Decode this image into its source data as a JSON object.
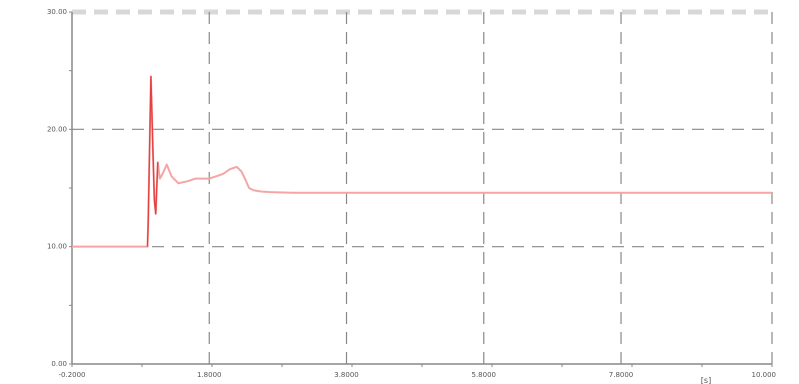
{
  "chart_data": {
    "type": "line",
    "title": "",
    "xlabel": "",
    "ylabel": "",
    "x_unit": "[s]",
    "xlim": [
      -0.2,
      10.0
    ],
    "ylim": [
      0.0,
      30.0
    ],
    "x_ticks": [
      -0.2,
      1.8,
      3.8,
      5.8,
      7.8,
      10.0
    ],
    "x_tick_labels": [
      "-0.2000",
      "1.8000",
      "3.8000",
      "5.8000",
      "7.8000",
      "10.000"
    ],
    "y_ticks": [
      0,
      10,
      20,
      30
    ],
    "y_tick_labels": [
      "0.00",
      "10.00",
      "20.00",
      "30.00"
    ],
    "grid": true,
    "legend": "none",
    "colors": {
      "series": "#f4a6a6",
      "series_spike": "#e03030",
      "grid": "#888888",
      "axis": "#888888",
      "top_band": "#d8d8d8"
    },
    "series": [
      {
        "values": [
          [
            -0.2,
            10.0
          ],
          [
            0.9,
            10.0
          ],
          [
            0.91,
            12.0
          ],
          [
            0.95,
            24.5
          ],
          [
            0.98,
            18.0
          ],
          [
            1.0,
            14.0
          ],
          [
            1.02,
            12.8
          ],
          [
            1.05,
            17.2
          ],
          [
            1.08,
            15.8
          ],
          [
            1.12,
            16.2
          ],
          [
            1.18,
            17.0
          ],
          [
            1.25,
            16.0
          ],
          [
            1.35,
            15.4
          ],
          [
            1.5,
            15.6
          ],
          [
            1.6,
            15.8
          ],
          [
            1.8,
            15.8
          ],
          [
            1.9,
            16.0
          ],
          [
            2.0,
            16.2
          ],
          [
            2.1,
            16.6
          ],
          [
            2.2,
            16.8
          ],
          [
            2.27,
            16.4
          ],
          [
            2.32,
            15.8
          ],
          [
            2.38,
            15.0
          ],
          [
            2.45,
            14.8
          ],
          [
            2.55,
            14.7
          ],
          [
            2.7,
            14.65
          ],
          [
            3.0,
            14.6
          ],
          [
            4.0,
            14.6
          ],
          [
            6.0,
            14.6
          ],
          [
            8.0,
            14.6
          ],
          [
            10.0,
            14.6
          ]
        ]
      }
    ]
  }
}
